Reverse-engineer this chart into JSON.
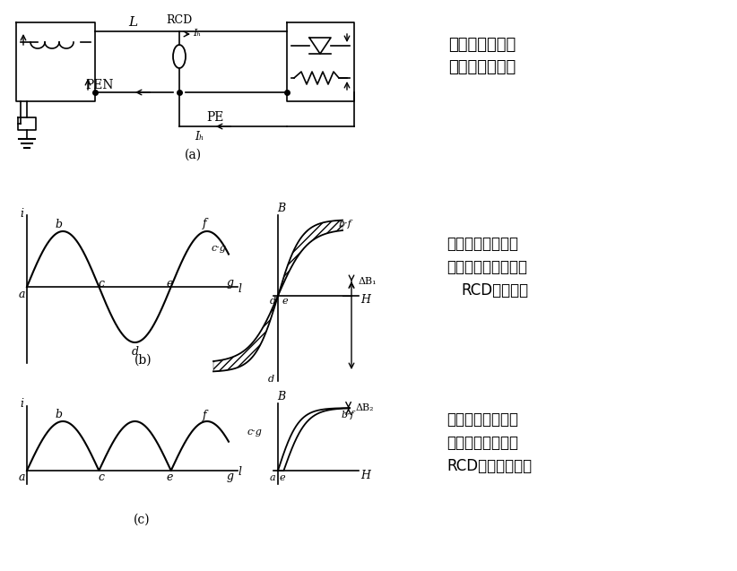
{
  "bg_color": "#ffffff",
  "text_color": "#000000",
  "line_color": "#000000",
  "desc1": "回路内整流元件",
  "desc2": "产生直流成份。",
  "desc3": "无直流成份时，互",
  "desc4": "感器内感应电势大，",
  "desc5": "RCD能动作。",
  "desc6": "有直流成份时，互",
  "desc7": "感器感应电势小，",
  "desc8": "RCD可能不动作。"
}
